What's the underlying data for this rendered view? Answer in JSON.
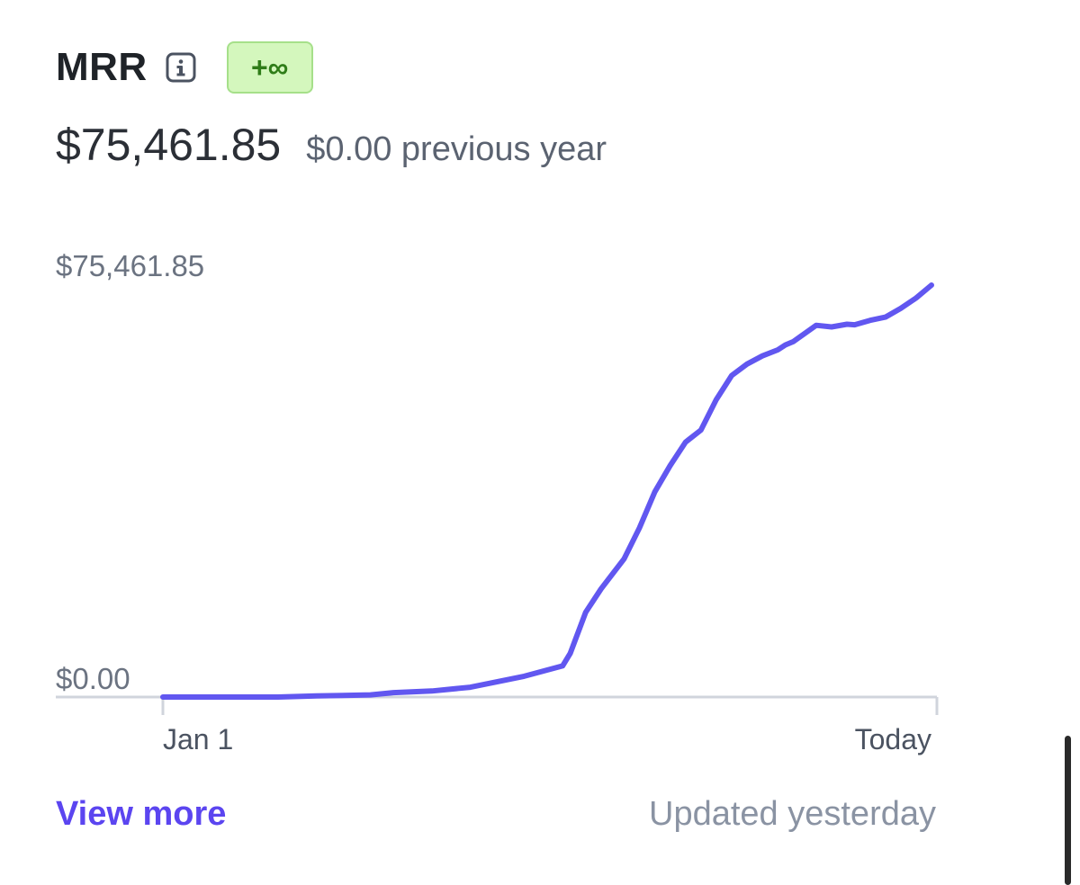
{
  "metric": {
    "title": "MRR",
    "change_badge": "+∞",
    "current_value": "$75,461.85",
    "previous_value": "$0.00 previous year"
  },
  "icons": {
    "info": "info-icon"
  },
  "colors": {
    "accent": "#5b45f0",
    "line": "#6157f0",
    "badge_bg": "#d4f7bd",
    "badge_text": "#2f7d18",
    "axis": "#d0d4dc"
  },
  "chart_data": {
    "type": "line",
    "ylim": [
      0,
      75461.85
    ],
    "y_tick_labels": [
      "$75,461.85",
      "$0.00"
    ],
    "x_tick_labels": [
      "Jan 1",
      "Today"
    ],
    "grid": false,
    "legend": "none",
    "series": [
      {
        "x": [
          0,
          0.15,
          0.2,
          0.27,
          0.3,
          0.35,
          0.4,
          0.47,
          0.52,
          0.53,
          0.55,
          0.57,
          0.6,
          0.62,
          0.64,
          0.66,
          0.68,
          0.7,
          0.72,
          0.74,
          0.76,
          0.78,
          0.8,
          0.81,
          0.82,
          0.85,
          0.87,
          0.89,
          0.9,
          0.92,
          0.94,
          0.96,
          0.98,
          1.0
        ],
        "values": [
          0,
          0,
          200,
          400,
          800,
          1100,
          1800,
          3800,
          5700,
          8000,
          15500,
          19800,
          25300,
          31000,
          37600,
          42400,
          46700,
          48900,
          54500,
          58900,
          61000,
          62500,
          63600,
          64500,
          65100,
          68100,
          67800,
          68300,
          68200,
          69000,
          69600,
          71200,
          73100,
          75461.85
        ]
      }
    ]
  },
  "footer": {
    "view_more": "View more",
    "updated": "Updated yesterday"
  }
}
